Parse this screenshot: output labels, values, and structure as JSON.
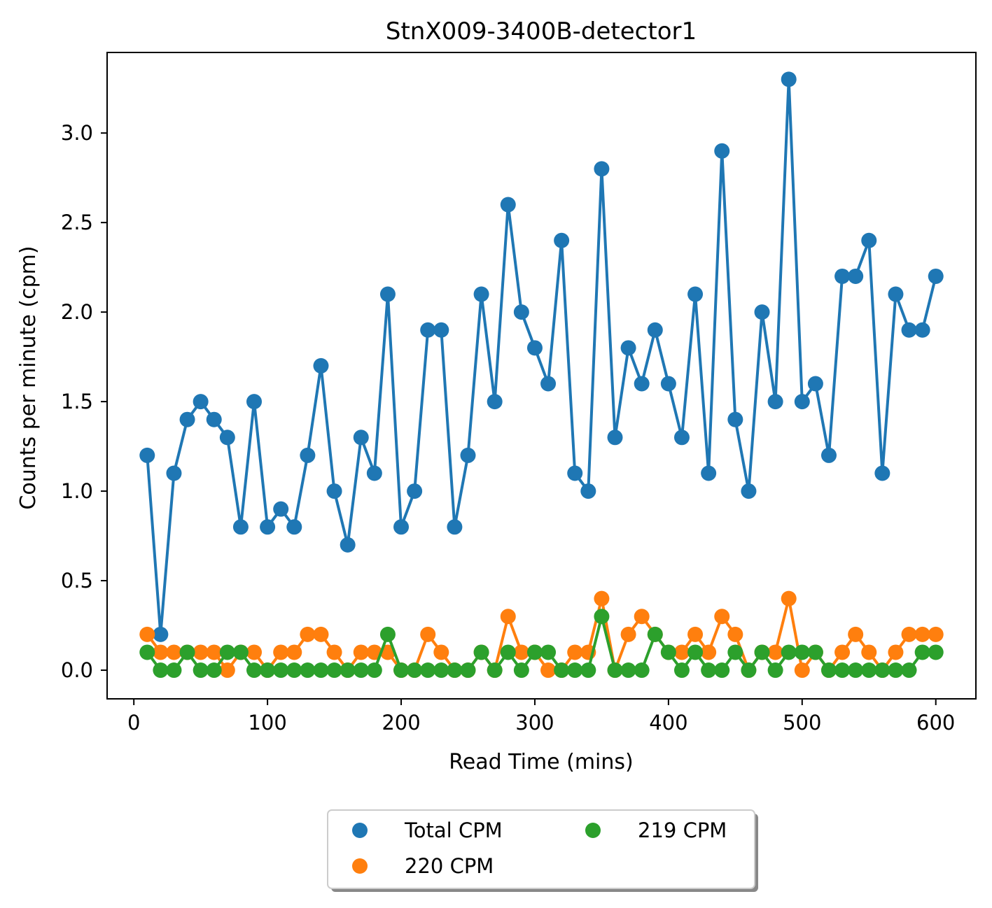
{
  "chart_data": {
    "type": "line",
    "title": "StnX009-3400B-detector1",
    "xlabel": "Read Time (mins)",
    "ylabel": "Counts per minute (cpm)",
    "xlim": [
      -20,
      630
    ],
    "ylim": [
      -0.16,
      3.45
    ],
    "xticks": [
      0,
      100,
      200,
      300,
      400,
      500,
      600
    ],
    "yticks": [
      0.0,
      0.5,
      1.0,
      1.5,
      2.0,
      2.5,
      3.0
    ],
    "xtick_labels": [
      "0",
      "100",
      "200",
      "300",
      "400",
      "500",
      "600"
    ],
    "ytick_labels": [
      "0.0",
      "0.5",
      "1.0",
      "1.5",
      "2.0",
      "2.5",
      "3.0"
    ],
    "grid": false,
    "legend_position": "below plot, center, two columns",
    "x": [
      10,
      20,
      30,
      40,
      50,
      60,
      70,
      80,
      90,
      100,
      110,
      120,
      130,
      140,
      150,
      160,
      170,
      180,
      190,
      200,
      210,
      220,
      230,
      240,
      250,
      260,
      270,
      280,
      290,
      300,
      310,
      320,
      330,
      340,
      350,
      360,
      370,
      380,
      390,
      400,
      410,
      420,
      430,
      440,
      450,
      460,
      470,
      480,
      490,
      500,
      510,
      520,
      530,
      540,
      550,
      560,
      570,
      580,
      590,
      600
    ],
    "series": [
      {
        "name": "Total CPM",
        "color": "#1f77b4",
        "values": [
          1.2,
          0.2,
          1.1,
          1.4,
          1.5,
          1.4,
          1.3,
          0.8,
          1.5,
          0.8,
          0.9,
          0.8,
          1.2,
          1.7,
          1.0,
          0.7,
          1.3,
          1.1,
          2.1,
          0.8,
          1.0,
          1.9,
          1.9,
          0.8,
          1.2,
          2.1,
          1.5,
          2.6,
          2.0,
          1.8,
          1.6,
          2.4,
          1.1,
          1.0,
          2.8,
          1.3,
          1.8,
          1.6,
          1.9,
          1.6,
          1.3,
          2.1,
          1.1,
          2.9,
          1.4,
          1.0,
          2.0,
          1.5,
          3.3,
          1.5,
          1.6,
          1.2,
          2.2,
          2.2,
          2.4,
          1.1,
          2.1,
          1.9,
          1.9,
          2.2
        ]
      },
      {
        "name": "220 CPM",
        "color": "#ff7f0e",
        "values": [
          0.2,
          0.1,
          0.1,
          0.1,
          0.1,
          0.1,
          0.0,
          0.1,
          0.1,
          0.0,
          0.1,
          0.1,
          0.2,
          0.2,
          0.1,
          0.0,
          0.1,
          0.1,
          0.1,
          0.0,
          0.0,
          0.2,
          0.1,
          0.0,
          0.0,
          0.1,
          0.0,
          0.3,
          0.1,
          0.1,
          0.0,
          0.0,
          0.1,
          0.1,
          0.4,
          0.0,
          0.2,
          0.3,
          0.2,
          0.1,
          0.1,
          0.2,
          0.1,
          0.3,
          0.2,
          0.0,
          0.1,
          0.1,
          0.4,
          0.0,
          0.1,
          0.0,
          0.1,
          0.2,
          0.1,
          0.0,
          0.1,
          0.2,
          0.2,
          0.2
        ]
      },
      {
        "name": "219 CPM",
        "color": "#2ca02c",
        "values": [
          0.1,
          0.0,
          0.0,
          0.1,
          0.0,
          0.0,
          0.1,
          0.1,
          0.0,
          0.0,
          0.0,
          0.0,
          0.0,
          0.0,
          0.0,
          0.0,
          0.0,
          0.0,
          0.2,
          0.0,
          0.0,
          0.0,
          0.0,
          0.0,
          0.0,
          0.1,
          0.0,
          0.1,
          0.0,
          0.1,
          0.1,
          0.0,
          0.0,
          0.0,
          0.3,
          0.0,
          0.0,
          0.0,
          0.2,
          0.1,
          0.0,
          0.1,
          0.0,
          0.0,
          0.1,
          0.0,
          0.1,
          0.0,
          0.1,
          0.1,
          0.1,
          0.0,
          0.0,
          0.0,
          0.0,
          0.0,
          0.0,
          0.0,
          0.1,
          0.1
        ]
      }
    ],
    "legend": [
      "Total CPM",
      "220 CPM",
      "219 CPM"
    ]
  }
}
